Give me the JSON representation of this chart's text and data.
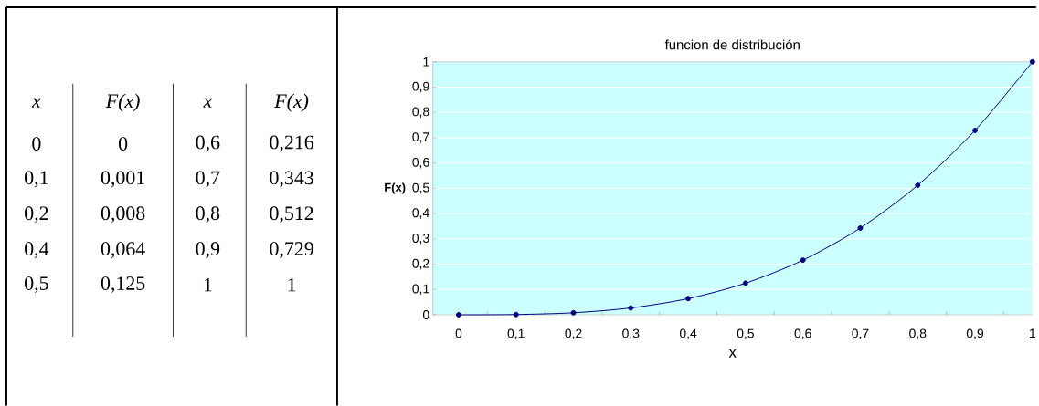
{
  "chart_data": [
    {
      "type": "other",
      "annotations": [
        "x",
        "F(x)",
        "x",
        "F(x)",
        "0",
        "0",
        "0,6",
        "0,216",
        "0,1",
        "0,001",
        "0,7",
        "0,343",
        "0,2",
        "0,008",
        "0,8",
        "0,512",
        "0,4",
        "0,064",
        "0,9",
        "0,729",
        "0,5",
        "0,125",
        "1",
        "1"
      ]
    },
    {
      "type": "line",
      "title": "funcion de distribución",
      "xlabel": "x",
      "ylabel": "F(x)",
      "categories": [
        "0",
        "0,1",
        "0,2",
        "0,3",
        "0,4",
        "0,5",
        "0,6",
        "0,7",
        "0,8",
        "0,9",
        "1"
      ],
      "values": [
        0,
        0.001,
        0.008,
        0.027,
        0.064,
        0.125,
        0.216,
        0.343,
        0.512,
        0.729,
        1
      ],
      "color": "#000080",
      "marker": "circle",
      "line_style": "solid",
      "grid": "y",
      "ylim": [
        0,
        1
      ],
      "yticks": [
        0,
        {
          "value": 0.1,
          "label": "0,1"
        },
        {
          "value": 0.2,
          "label": "0,2"
        },
        {
          "value": 0.3,
          "label": "0,3"
        },
        {
          "value": 0.4,
          "label": "0,4"
        },
        {
          "value": 0.5,
          "label": "0,5"
        },
        {
          "value": 0.6,
          "label": "0,6"
        },
        {
          "value": 0.7,
          "label": "0,7"
        },
        {
          "value": 0.8,
          "label": "0,8"
        },
        {
          "value": 0.9,
          "label": "0,9"
        },
        1
      ]
    }
  ]
}
